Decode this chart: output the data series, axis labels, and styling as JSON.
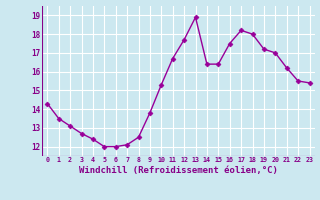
{
  "x": [
    0,
    1,
    2,
    3,
    4,
    5,
    6,
    7,
    8,
    9,
    10,
    11,
    12,
    13,
    14,
    15,
    16,
    17,
    18,
    19,
    20,
    21,
    22,
    23
  ],
  "y": [
    14.3,
    13.5,
    13.1,
    12.7,
    12.4,
    12.0,
    12.0,
    12.1,
    12.5,
    13.8,
    15.3,
    16.7,
    17.7,
    18.9,
    16.4,
    16.4,
    17.5,
    18.2,
    18.0,
    17.2,
    17.0,
    16.2,
    15.5,
    15.4
  ],
  "line_color": "#990099",
  "marker": "D",
  "markersize": 2.5,
  "linewidth": 1.0,
  "xlabel": "Windchill (Refroidissement éolien,°C)",
  "xlabel_fontsize": 6.5,
  "xtick_labels": [
    "0",
    "1",
    "2",
    "3",
    "4",
    "5",
    "6",
    "7",
    "8",
    "9",
    "10",
    "11",
    "12",
    "13",
    "14",
    "15",
    "16",
    "17",
    "18",
    "19",
    "20",
    "21",
    "22",
    "23"
  ],
  "ytick_labels": [
    "12",
    "13",
    "14",
    "15",
    "16",
    "17",
    "18",
    "19"
  ],
  "yticks": [
    12,
    13,
    14,
    15,
    16,
    17,
    18,
    19
  ],
  "ylim": [
    11.5,
    19.5
  ],
  "xlim": [
    -0.5,
    23.5
  ],
  "bg_color": "#cce8f0",
  "grid_color": "#ffffff",
  "tick_color": "#880088",
  "xlabel_color": "#880088"
}
